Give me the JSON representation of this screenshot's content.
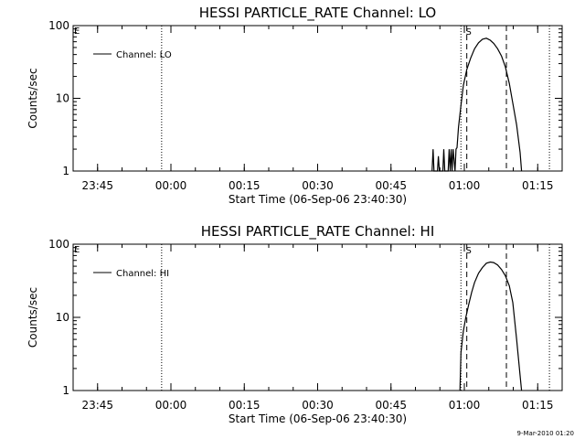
{
  "footer": {
    "timestamp": "9-Mar-2010 01:20"
  },
  "chart_data": [
    {
      "type": "line",
      "title": "HESSI PARTICLE_RATE Channel: LO",
      "xlabel": "Start Time (06-Sep-06 23:40:30)",
      "ylabel": "Counts/sec",
      "ylim": [
        1,
        100
      ],
      "yscale": "log",
      "xlim_minutes_from_start": [
        -0.5,
        99.5
      ],
      "x_ticks": [
        {
          "label": "23:45",
          "value": 4.5
        },
        {
          "label": "00:00",
          "value": 19.5
        },
        {
          "label": "00:15",
          "value": 34.5
        },
        {
          "label": "00:30",
          "value": 49.5
        },
        {
          "label": "00:45",
          "value": 64.5
        },
        {
          "label": "01:00",
          "value": 79.5
        },
        {
          "label": "01:15",
          "value": 94.5
        }
      ],
      "y_ticks": [
        {
          "label": "1",
          "value": 1
        },
        {
          "label": "10",
          "value": 10
        },
        {
          "label": "100",
          "value": 100
        }
      ],
      "annotation": "S",
      "legend": {
        "position": "top-left",
        "entries": [
          "Channel: LO"
        ]
      },
      "dotted_lines": [
        17.6,
        78.8,
        96.9
      ],
      "dashed_lines": [
        80.0,
        88.1
      ],
      "series": [
        {
          "name": "Channel: LO",
          "x": [
            72.9,
            73.1,
            73.3,
            74.0,
            74.2,
            74.4,
            75.1,
            75.3,
            75.5,
            76.2,
            76.4,
            76.6,
            76.8,
            77.0,
            77.2,
            77.6,
            77.8,
            78.0,
            78.3,
            78.8,
            79.3,
            80.0,
            80.8,
            81.6,
            82.4,
            83.2,
            84.0,
            84.8,
            85.5,
            86.3,
            87.1,
            87.9,
            88.7,
            89.4,
            90.2,
            90.9,
            91.2
          ],
          "y": [
            1,
            2,
            1,
            1,
            1.6,
            1,
            1,
            2,
            1,
            1,
            2,
            1,
            2,
            1,
            2,
            1,
            2,
            2.1,
            4,
            8,
            15,
            25,
            36,
            48,
            58,
            65,
            67,
            63,
            57,
            48,
            38,
            27,
            16,
            8.6,
            4.3,
            1.8,
            1
          ]
        }
      ]
    },
    {
      "type": "line",
      "title": "HESSI PARTICLE_RATE Channel: HI",
      "xlabel": "Start Time (06-Sep-06 23:40:30)",
      "ylabel": "Counts/sec",
      "ylim": [
        1,
        100
      ],
      "yscale": "log",
      "xlim_minutes_from_start": [
        -0.5,
        99.5
      ],
      "x_ticks": [
        {
          "label": "23:45",
          "value": 4.5
        },
        {
          "label": "00:00",
          "value": 19.5
        },
        {
          "label": "00:15",
          "value": 34.5
        },
        {
          "label": "00:30",
          "value": 49.5
        },
        {
          "label": "00:45",
          "value": 64.5
        },
        {
          "label": "01:00",
          "value": 79.5
        },
        {
          "label": "01:15",
          "value": 94.5
        }
      ],
      "y_ticks": [
        {
          "label": "1",
          "value": 1
        },
        {
          "label": "10",
          "value": 10
        },
        {
          "label": "100",
          "value": 100
        }
      ],
      "annotation": "S",
      "legend": {
        "position": "top-left",
        "entries": [
          "Channel: HI"
        ]
      },
      "dotted_lines": [
        17.6,
        78.8,
        96.9
      ],
      "dashed_lines": [
        80.0,
        88.1
      ],
      "series": [
        {
          "name": "Channel: HI",
          "x": [
            78.6,
            78.8,
            79.3,
            79.8,
            80.4,
            81.0,
            81.6,
            82.4,
            83.2,
            84.0,
            84.8,
            85.5,
            86.3,
            87.1,
            87.9,
            88.7,
            89.4,
            90.2,
            90.9,
            91.2
          ],
          "y": [
            1,
            3.3,
            6.5,
            10,
            15,
            22,
            30,
            40,
            48,
            55,
            57,
            56,
            52,
            45,
            37,
            27,
            16,
            5,
            1.6,
            1
          ]
        }
      ]
    }
  ]
}
